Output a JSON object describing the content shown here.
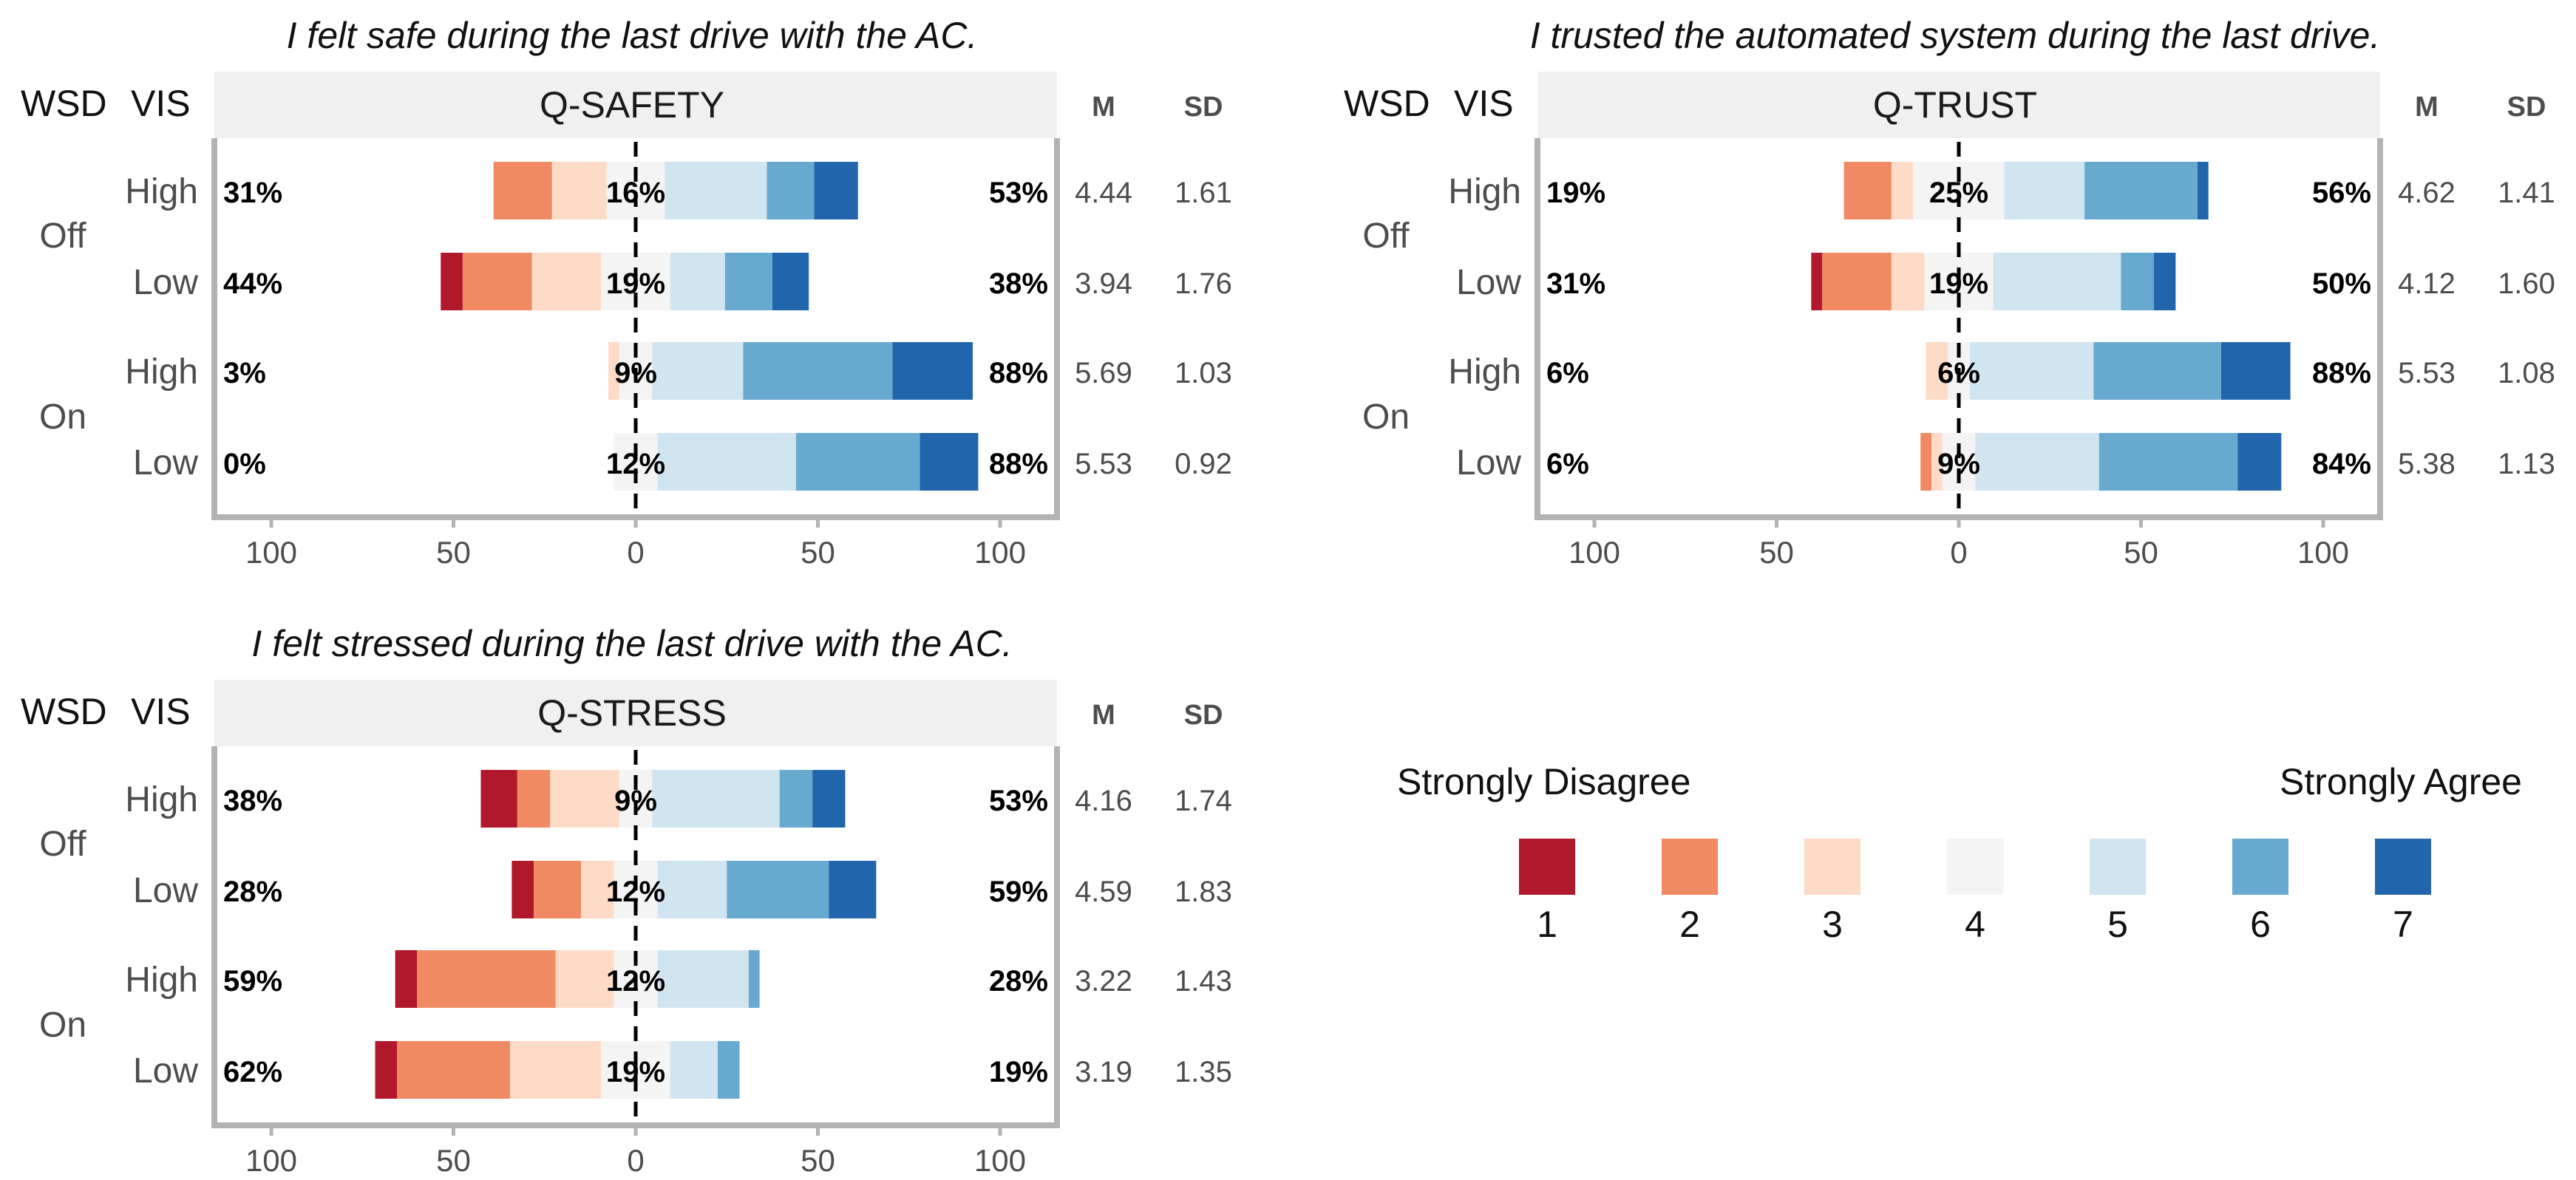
{
  "colors": {
    "levels": [
      "#b2182b",
      "#ef8a62",
      "#fddbc7",
      "#f4f4f4",
      "#d1e5f0",
      "#67a9cf",
      "#2166ac"
    ],
    "strip": "#f0f0f0",
    "axis": "#b3b3b3",
    "text": "#4d4d4d"
  },
  "headers": {
    "wsd": "WSD",
    "vis": "VIS",
    "mean": "M",
    "sd": "SD"
  },
  "legend": {
    "left_label": "Strongly Disagree",
    "right_label": "Strongly Agree",
    "levels": [
      "1",
      "2",
      "3",
      "4",
      "5",
      "6",
      "7"
    ]
  },
  "chart_data": [
    {
      "type": "bar",
      "title": "I felt safe during the last drive with the AC.",
      "strip_label": "Q-SAFETY",
      "x_ticks": [
        "100",
        "50",
        "0",
        "50",
        "100"
      ],
      "xlim": [
        -100,
        100
      ],
      "groups": [
        {
          "label": "Off",
          "rows": [
            {
              "label": "High",
              "left_pct": "31%",
              "mid_pct": "16%",
              "right_pct": "53%",
              "mean": "4.44",
              "sd": "1.61",
              "segments": [
                0,
                16,
                15,
                16,
                28,
                13,
                12
              ]
            },
            {
              "label": "Low",
              "left_pct": "44%",
              "mid_pct": "19%",
              "right_pct": "38%",
              "mean": "3.94",
              "sd": "1.76",
              "segments": [
                6,
                19,
                19,
                19,
                15,
                13,
                10
              ]
            }
          ]
        },
        {
          "label": "On",
          "rows": [
            {
              "label": "High",
              "left_pct": "3%",
              "mid_pct": "9%",
              "right_pct": "88%",
              "mean": "5.69",
              "sd": "1.03",
              "segments": [
                0,
                0,
                3,
                9,
                25,
                41,
                22
              ]
            },
            {
              "label": "Low",
              "left_pct": "0%",
              "mid_pct": "12%",
              "right_pct": "88%",
              "mean": "5.53",
              "sd": "0.92",
              "segments": [
                0,
                0,
                0,
                12,
                38,
                34,
                16
              ]
            }
          ]
        }
      ]
    },
    {
      "type": "bar",
      "title": "I trusted the automated system during the last drive.",
      "strip_label": "Q-TRUST",
      "x_ticks": [
        "100",
        "50",
        "0",
        "50",
        "100"
      ],
      "xlim": [
        -100,
        100
      ],
      "groups": [
        {
          "label": "Off",
          "rows": [
            {
              "label": "High",
              "left_pct": "19%",
              "mid_pct": "25%",
              "right_pct": "56%",
              "mean": "4.62",
              "sd": "1.41",
              "segments": [
                0,
                13,
                6,
                25,
                22,
                31,
                3
              ]
            },
            {
              "label": "Low",
              "left_pct": "31%",
              "mid_pct": "19%",
              "right_pct": "50%",
              "mean": "4.12",
              "sd": "1.60",
              "segments": [
                3,
                19,
                9,
                19,
                35,
                9,
                6
              ]
            }
          ]
        },
        {
          "label": "On",
          "rows": [
            {
              "label": "High",
              "left_pct": "6%",
              "mid_pct": "6%",
              "right_pct": "88%",
              "mean": "5.53",
              "sd": "1.08",
              "segments": [
                0,
                0,
                6,
                6,
                34,
                35,
                19
              ]
            },
            {
              "label": "Low",
              "left_pct": "6%",
              "mid_pct": "9%",
              "right_pct": "84%",
              "mean": "5.38",
              "sd": "1.13",
              "segments": [
                0,
                3,
                3,
                9,
                34,
                38,
                12
              ]
            }
          ]
        }
      ]
    },
    {
      "type": "bar",
      "title": "I felt stressed during the last drive with the AC.",
      "strip_label": "Q-STRESS",
      "x_ticks": [
        "100",
        "50",
        "0",
        "50",
        "100"
      ],
      "xlim": [
        -100,
        100
      ],
      "groups": [
        {
          "label": "Off",
          "rows": [
            {
              "label": "High",
              "left_pct": "38%",
              "mid_pct": "9%",
              "right_pct": "53%",
              "mean": "4.16",
              "sd": "1.74",
              "segments": [
                10,
                9,
                19,
                9,
                35,
                9,
                9
              ]
            },
            {
              "label": "Low",
              "left_pct": "28%",
              "mid_pct": "12%",
              "right_pct": "59%",
              "mean": "4.59",
              "sd": "1.83",
              "segments": [
                6,
                13,
                9,
                12,
                19,
                28,
                13
              ]
            }
          ]
        },
        {
          "label": "On",
          "rows": [
            {
              "label": "High",
              "left_pct": "59%",
              "mid_pct": "12%",
              "right_pct": "28%",
              "mean": "3.22",
              "sd": "1.43",
              "segments": [
                6,
                38,
                16,
                12,
                25,
                3,
                0
              ]
            },
            {
              "label": "Low",
              "left_pct": "62%",
              "mid_pct": "19%",
              "right_pct": "19%",
              "mean": "3.19",
              "sd": "1.35",
              "segments": [
                6,
                31,
                25,
                19,
                13,
                6,
                0
              ]
            }
          ]
        }
      ]
    }
  ]
}
